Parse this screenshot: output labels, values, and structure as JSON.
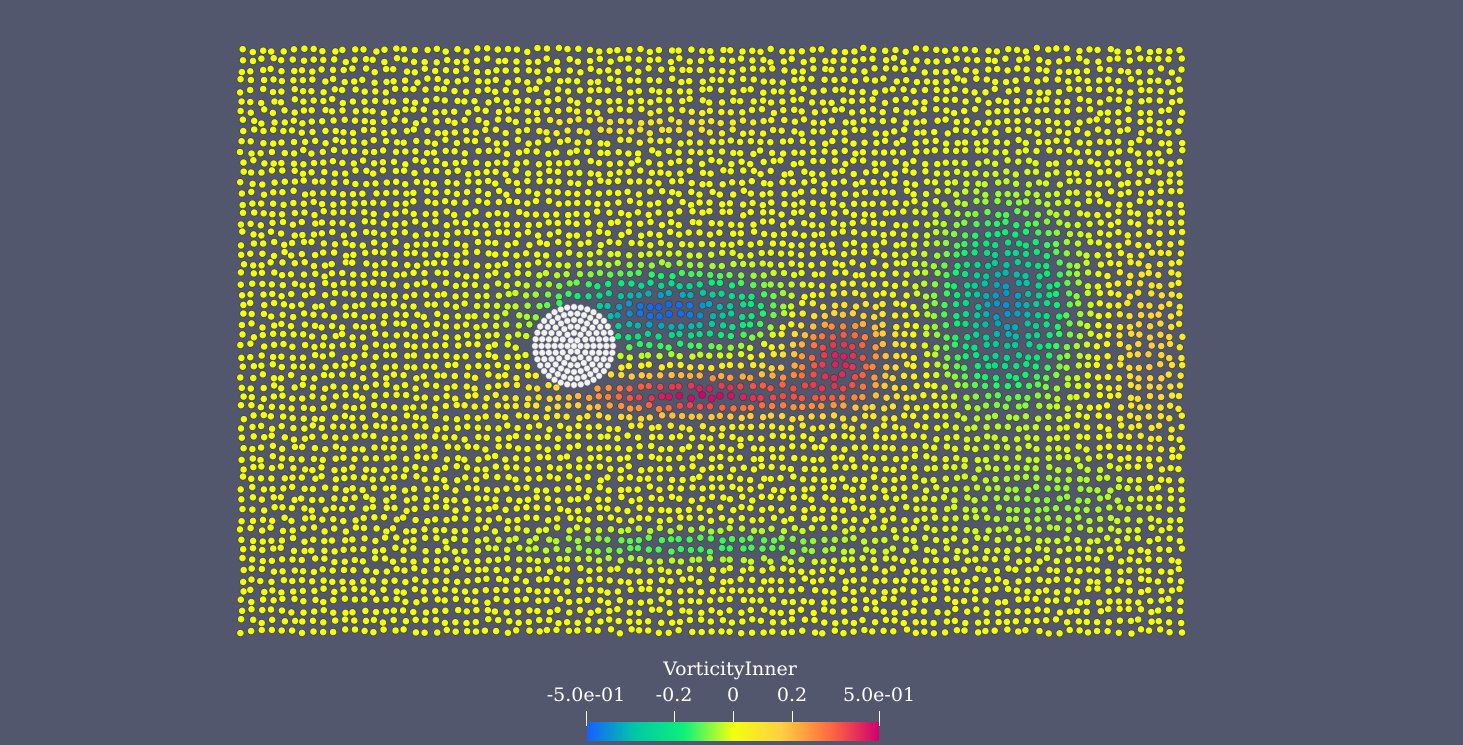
{
  "scene": {
    "background": "#52576e",
    "particle_field": "vorticity-colored-particles",
    "obstacle": "white-cylinder-particles"
  },
  "colorbar": {
    "title": "VorticityInner",
    "ticks": [
      "-5.0e-01",
      "-0.2",
      "0",
      "0.2",
      "5.0e-01"
    ],
    "range": [
      -0.5,
      0.5
    ],
    "colormap": [
      "#1560ff",
      "#00c9a4",
      "#0ff07a",
      "#f2ff10",
      "#ffd040",
      "#ff6a40",
      "#cf0070"
    ]
  }
}
